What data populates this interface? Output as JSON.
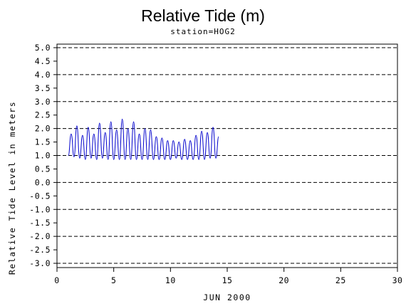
{
  "chart_data": {
    "type": "line",
    "title": "Relative Tide (m)",
    "subtitle": "station=HOG2",
    "xlabel": "JUN 2000",
    "ylabel": "Relative Tide Level in meters",
    "xlim": [
      0,
      30
    ],
    "ylim": [
      -3.0,
      5.0
    ],
    "x_ticks": [
      0,
      5,
      10,
      15,
      20,
      25,
      30
    ],
    "x_tick_labels": [
      "0",
      "5",
      "10",
      "15",
      "20",
      "25",
      "30"
    ],
    "y_ticks": [
      5.0,
      4.5,
      4.0,
      3.5,
      3.0,
      2.5,
      2.0,
      1.5,
      1.0,
      0.5,
      0.0,
      -0.5,
      -1.0,
      -1.5,
      -2.0,
      -2.5,
      -3.0
    ],
    "y_tick_labels": [
      "5.0",
      "4.5",
      "4.0",
      "3.5",
      "3.0",
      "2.5",
      "2.0",
      "1.5",
      "1.0",
      "0.5",
      "0.0",
      "-0.5",
      "-1.0",
      "-1.5",
      "-2.0",
      "-2.5",
      "-3.0"
    ],
    "grid": {
      "horizontal_dashed_at": [
        5.0,
        4.0,
        3.0,
        2.0,
        1.0,
        0.0,
        -1.0,
        -2.0,
        -3.0
      ]
    },
    "series_color": "#0000cc",
    "series": [
      {
        "x": [
          1.0,
          1.25,
          1.5,
          1.75,
          2.0,
          2.25,
          2.5,
          2.75,
          3.0,
          3.25,
          3.5,
          3.75,
          4.0,
          4.25,
          4.5,
          4.75,
          5.0,
          5.25,
          5.5,
          5.75,
          6.0,
          6.25,
          6.5,
          6.75,
          7.0,
          7.25,
          7.5,
          7.75,
          8.0,
          8.25,
          8.5,
          8.75,
          9.0,
          9.25,
          9.5,
          9.75,
          10.0,
          10.25,
          10.5,
          10.75,
          11.0,
          11.25,
          11.5,
          11.75,
          12.0,
          12.25,
          12.5,
          12.75,
          13.0,
          13.25,
          13.5,
          13.75,
          14.0,
          14.25
        ],
        "values": [
          1.0,
          1.8,
          0.95,
          2.1,
          0.9,
          1.75,
          0.85,
          2.05,
          0.9,
          1.8,
          0.85,
          2.2,
          0.9,
          1.85,
          0.85,
          2.25,
          0.85,
          1.95,
          0.85,
          2.35,
          0.85,
          2.0,
          0.85,
          2.25,
          0.85,
          1.8,
          0.85,
          2.0,
          0.85,
          1.95,
          0.85,
          1.7,
          0.85,
          1.65,
          0.85,
          1.55,
          0.85,
          1.55,
          0.9,
          1.5,
          0.85,
          1.6,
          0.85,
          1.55,
          0.85,
          1.75,
          0.85,
          1.9,
          0.85,
          1.85,
          0.9,
          2.05,
          0.9,
          1.7
        ]
      }
    ]
  }
}
